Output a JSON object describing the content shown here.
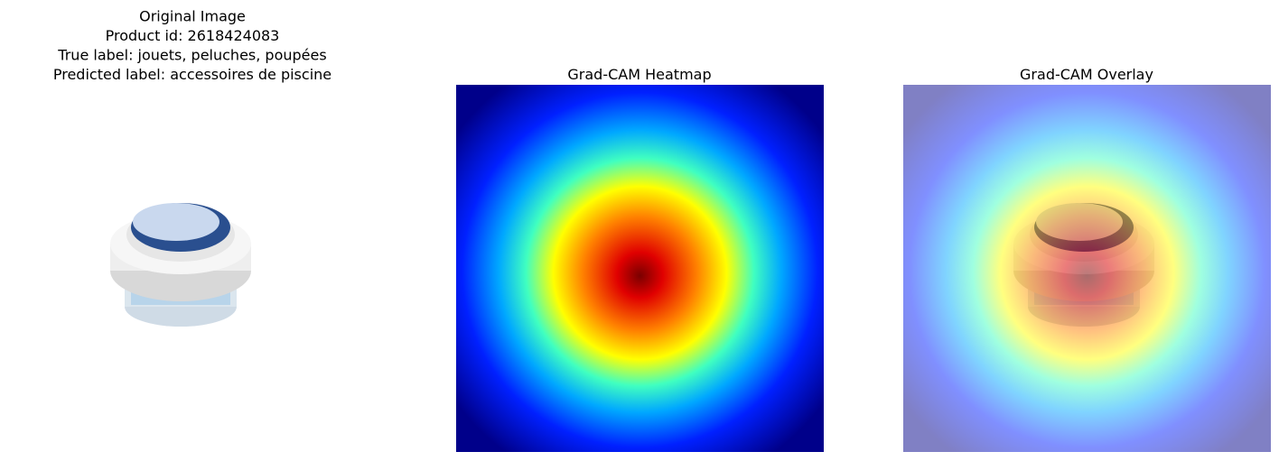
{
  "panels": [
    {
      "title_lines": [
        "Original Image",
        "Product id: 2618424083",
        "True label: jouets, peluches, poupées",
        "Predicted label: accessoires de piscine"
      ]
    },
    {
      "title_lines": [
        "Grad-CAM Heatmap"
      ]
    },
    {
      "title_lines": [
        "Grad-CAM Overlay"
      ]
    }
  ]
}
